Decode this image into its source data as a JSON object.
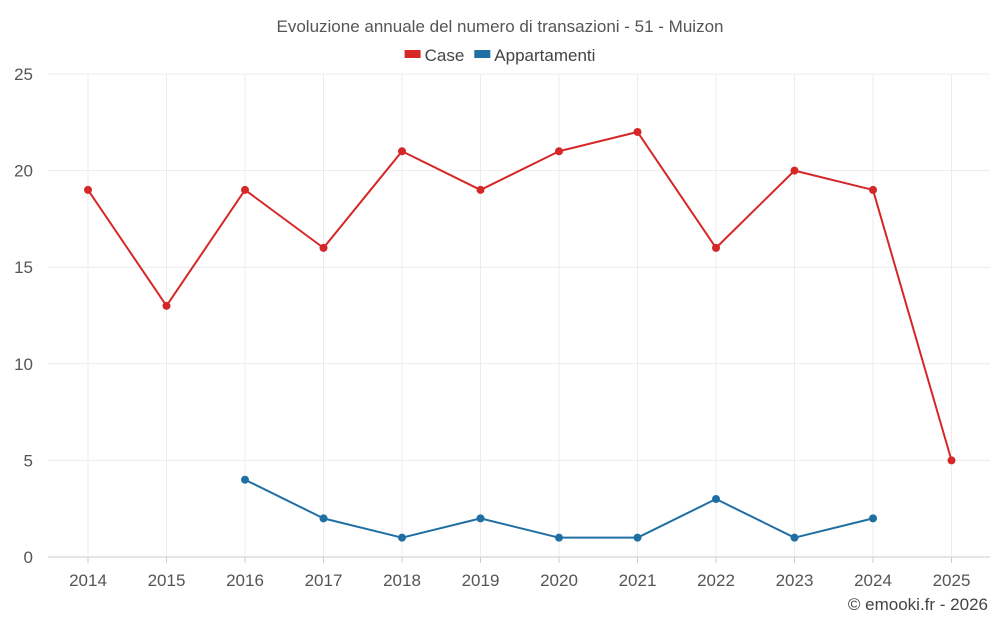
{
  "chart_data": {
    "type": "line",
    "title": "Evoluzione annuale del numero di transazioni - 51 - Muizon",
    "xlabel": "",
    "ylabel": "",
    "categories": [
      "2014",
      "2015",
      "2016",
      "2017",
      "2018",
      "2019",
      "2020",
      "2021",
      "2022",
      "2023",
      "2024",
      "2025"
    ],
    "ylim": [
      0,
      25
    ],
    "yticks": [
      0,
      5,
      10,
      15,
      20,
      25
    ],
    "grid": true,
    "legend_position": "top-center",
    "series": [
      {
        "name": "Case",
        "color": "#d62728",
        "values": [
          19,
          13,
          19,
          16,
          21,
          19,
          21,
          22,
          16,
          20,
          19,
          5
        ]
      },
      {
        "name": "Appartamenti",
        "color": "#1f6fa3",
        "values": [
          null,
          null,
          4,
          2,
          1,
          2,
          1,
          1,
          3,
          1,
          2,
          null
        ]
      }
    ]
  },
  "credit": "© emooki.fr - 2026"
}
